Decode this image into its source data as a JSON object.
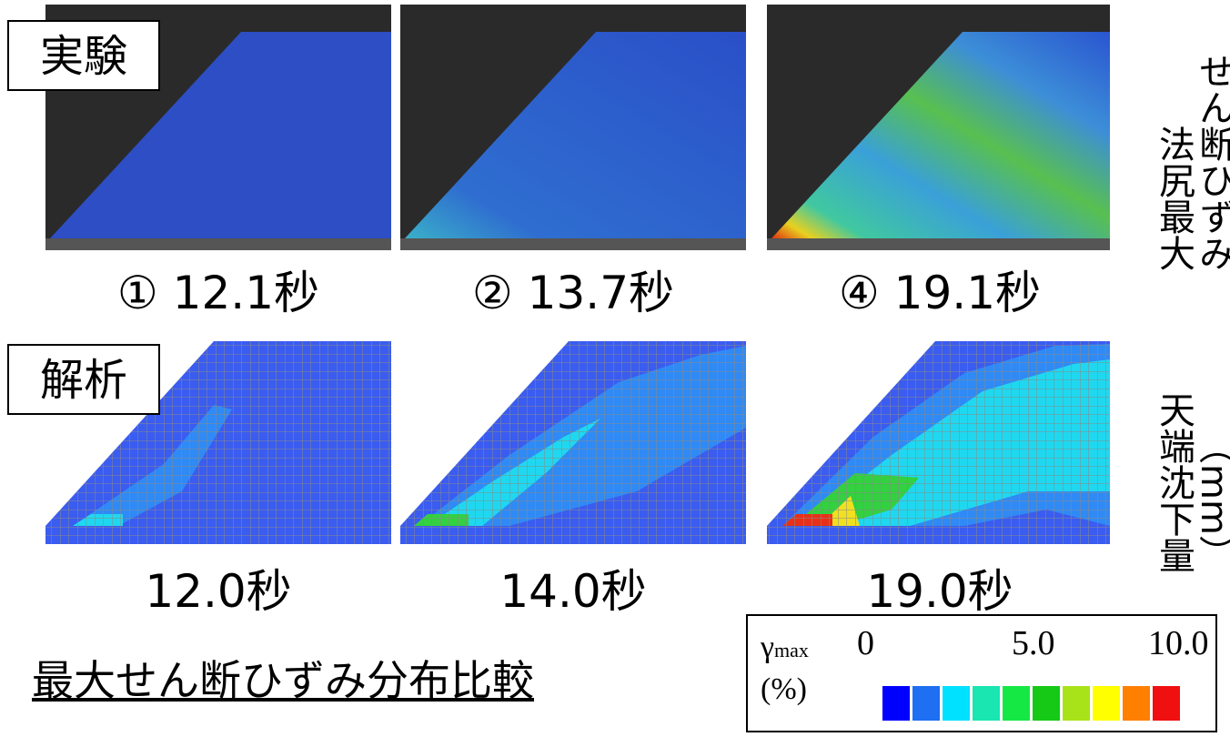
{
  "labels": {
    "experiment": "実験",
    "analysis": "解析"
  },
  "experiment_captions": [
    "① 12.1秒",
    "② 13.7秒",
    "④ 19.1秒"
  ],
  "analysis_captions": [
    "12.0秒",
    "14.0秒",
    "19.0秒"
  ],
  "title": "最大せん断ひずみ分布比較",
  "legend": {
    "symbol": "γ",
    "subscript": "max",
    "unit": "(%)",
    "ticks": [
      "0",
      "5.0",
      "10.0"
    ],
    "colors": [
      "#0000ff",
      "#1e6ff2",
      "#00e0ff",
      "#19e6b0",
      "#15e845",
      "#16c916",
      "#a8e31a",
      "#ffff00",
      "#ff7f00",
      "#f01010"
    ]
  },
  "side_labels": [
    [
      "法尻最大",
      "せん断ひずみ"
    ],
    [
      "天端沈下量",
      "（mm）"
    ]
  ]
}
